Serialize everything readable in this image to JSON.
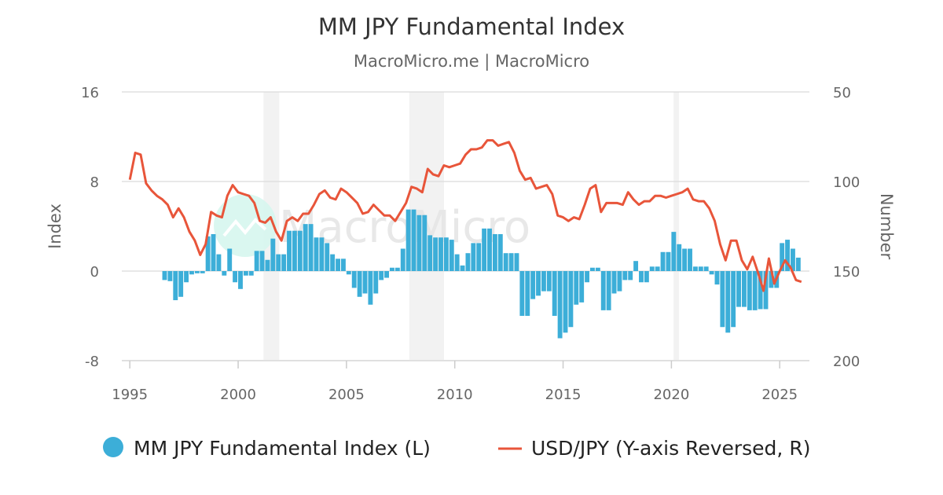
{
  "chart_data": {
    "type": "bar+line",
    "title": "MM JPY Fundamental Index",
    "subtitle": "MacroMicro.me | MacroMicro",
    "watermark": "MacroMicro",
    "x_ticks": [
      "1995",
      "2000",
      "2005",
      "2010",
      "2015",
      "2020",
      "2025"
    ],
    "xlim": [
      1994.63,
      2026.37
    ],
    "left_axis": {
      "label": "Index",
      "ylim": [
        -8,
        16
      ],
      "ticks": [
        "16",
        "8",
        "0",
        "-8"
      ]
    },
    "right_axis": {
      "label": "Number",
      "ylim": [
        50,
        200
      ],
      "reversed": true,
      "ticks": [
        "50",
        "100",
        "150",
        "200"
      ]
    },
    "grid": true,
    "legend_position": "bottom",
    "recession_bands": [
      [
        2001.17,
        2001.9
      ],
      [
        2007.9,
        2009.5
      ],
      [
        2020.1,
        2020.35
      ]
    ],
    "colors": {
      "index": "#3caed8",
      "usdjpy": "#e8553a",
      "band": "#f2f2f2",
      "grid": "#e0e0e0"
    },
    "series": [
      {
        "name": "MM JPY Fundamental Index (L)",
        "type": "bar",
        "axis": "left",
        "start_year": 1996.5,
        "step": 0.25,
        "values": [
          -0.8,
          -0.9,
          -2.6,
          -2.3,
          -1.0,
          -0.3,
          -0.2,
          -0.2,
          3.1,
          3.3,
          1.5,
          -0.4,
          2.0,
          -1.0,
          -1.6,
          -0.4,
          -0.4,
          1.8,
          1.8,
          1.0,
          2.9,
          1.5,
          1.5,
          3.6,
          3.6,
          3.6,
          4.2,
          4.2,
          3.0,
          3.0,
          2.5,
          1.5,
          1.1,
          1.1,
          -0.3,
          -1.5,
          -2.3,
          -2.0,
          -3.0,
          -2.0,
          -0.8,
          -0.6,
          0.3,
          0.3,
          2.0,
          5.5,
          5.5,
          5.0,
          5.0,
          3.2,
          3.0,
          3.0,
          3.0,
          2.8,
          1.5,
          0.5,
          1.6,
          2.5,
          2.5,
          3.8,
          3.8,
          3.3,
          3.3,
          1.6,
          1.6,
          1.6,
          -4.0,
          -4.0,
          -2.5,
          -2.2,
          -1.8,
          -1.8,
          -4.0,
          -6.0,
          -5.5,
          -5.0,
          -3.0,
          -2.8,
          -1.0,
          0.3,
          0.3,
          -3.5,
          -3.5,
          -2.0,
          -1.8,
          -0.8,
          -0.8,
          0.9,
          -1.0,
          -1.0,
          0.4,
          0.4,
          1.7,
          1.7,
          3.5,
          2.4,
          2.0,
          2.0,
          0.4,
          0.4,
          0.4,
          -0.3,
          -1.2,
          -5.0,
          -5.5,
          -5.0,
          -3.2,
          -3.2,
          -3.5,
          -3.5,
          -3.4,
          -3.4,
          -1.5,
          -1.5,
          2.5,
          2.8,
          2.0,
          1.2
        ]
      },
      {
        "name": "USD/JPY (Y-axis Reversed, R)",
        "type": "line",
        "axis": "right",
        "start_year": 1995.0,
        "step": 0.25,
        "values": [
          99,
          84,
          85,
          101,
          105,
          108,
          110,
          113,
          120,
          115,
          120,
          128,
          133,
          141,
          135,
          117,
          119,
          120,
          108,
          102,
          106,
          107,
          108,
          112,
          122,
          123,
          120,
          128,
          133,
          122,
          120,
          122,
          118,
          118,
          113,
          107,
          105,
          109,
          110,
          104,
          106,
          109,
          112,
          118,
          117,
          113,
          116,
          119,
          119,
          122,
          117,
          112,
          103,
          104,
          106,
          93,
          96,
          97,
          91,
          92,
          91,
          90,
          85,
          82,
          82,
          81,
          77,
          77,
          80,
          79,
          78,
          84,
          94,
          99,
          98,
          104,
          103,
          102,
          107,
          119,
          120,
          122,
          120,
          121,
          113,
          104,
          102,
          117,
          112,
          112,
          112,
          113,
          106,
          110,
          113,
          111,
          111,
          108,
          108,
          109,
          108,
          107,
          106,
          104,
          110,
          111,
          111,
          115,
          122,
          135,
          144,
          133,
          133,
          144,
          149,
          142,
          151,
          161,
          143,
          157,
          150,
          144,
          148,
          155,
          156
        ]
      }
    ]
  }
}
